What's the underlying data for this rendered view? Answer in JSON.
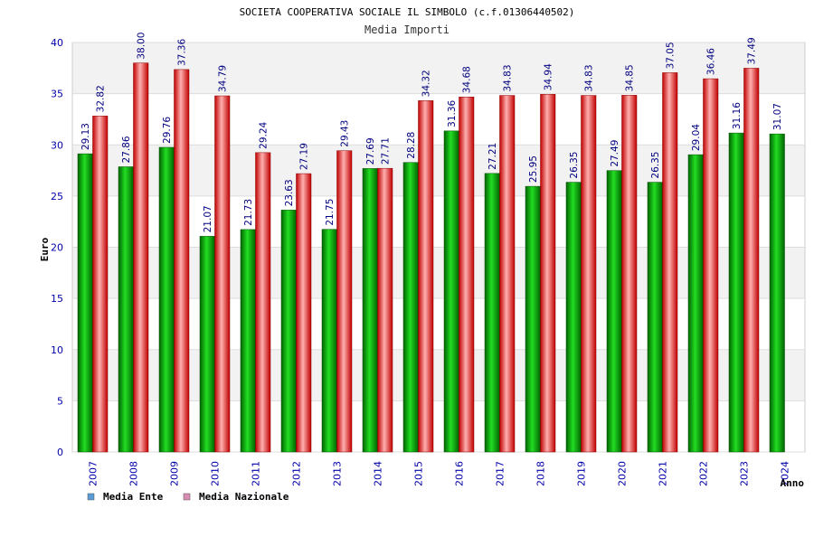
{
  "chart_data": {
    "type": "bar",
    "title": "SOCIETA COOPERATIVA SOCIALE IL SIMBOLO (c.f.01306440502)",
    "subtitle": "Media Importi",
    "xlabel": "Anno",
    "ylabel": "Euro",
    "ylim": [
      0,
      40
    ],
    "yticks": [
      0,
      5,
      10,
      15,
      20,
      25,
      30,
      35,
      40
    ],
    "categories": [
      "2007",
      "2008",
      "2009",
      "2010",
      "2011",
      "2012",
      "2013",
      "2014",
      "2015",
      "2016",
      "2017",
      "2018",
      "2019",
      "2020",
      "2021",
      "2022",
      "2023",
      "2024"
    ],
    "series": [
      {
        "name": "Media Ente",
        "color": "#0a9a0a",
        "legend_color": "#5b9bd5",
        "values": [
          29.13,
          27.86,
          29.76,
          21.07,
          21.73,
          23.63,
          21.75,
          27.69,
          28.28,
          31.36,
          27.21,
          25.95,
          26.35,
          27.49,
          26.35,
          29.04,
          31.16,
          31.07
        ],
        "labels": [
          "29.13",
          "27.86",
          "29.76",
          "21.07",
          "21.73",
          "23.63",
          "21.75",
          "27.69",
          "28.28",
          "31.36",
          "27.21",
          "25.95",
          "26.35",
          "27.49",
          "26.35",
          "29.04",
          "31.16",
          "31.07"
        ]
      },
      {
        "name": "Media Nazionale",
        "color": "#e02020",
        "legend_color": "#d98cb3",
        "values": [
          32.82,
          38.0,
          37.36,
          34.79,
          29.24,
          27.19,
          29.43,
          27.71,
          34.32,
          34.68,
          34.83,
          34.94,
          34.83,
          34.85,
          37.05,
          36.46,
          37.49,
          null
        ],
        "labels": [
          "32.82",
          "38.00",
          "37.36",
          "34.79",
          "29.24",
          "27.19",
          "29.43",
          "27.71",
          "34.32",
          "34.68",
          "34.83",
          "34.94",
          "34.83",
          "34.85",
          "37.05",
          "36.46",
          "37.49",
          null
        ]
      }
    ],
    "grid": true,
    "legend_position": "bottom-left"
  }
}
